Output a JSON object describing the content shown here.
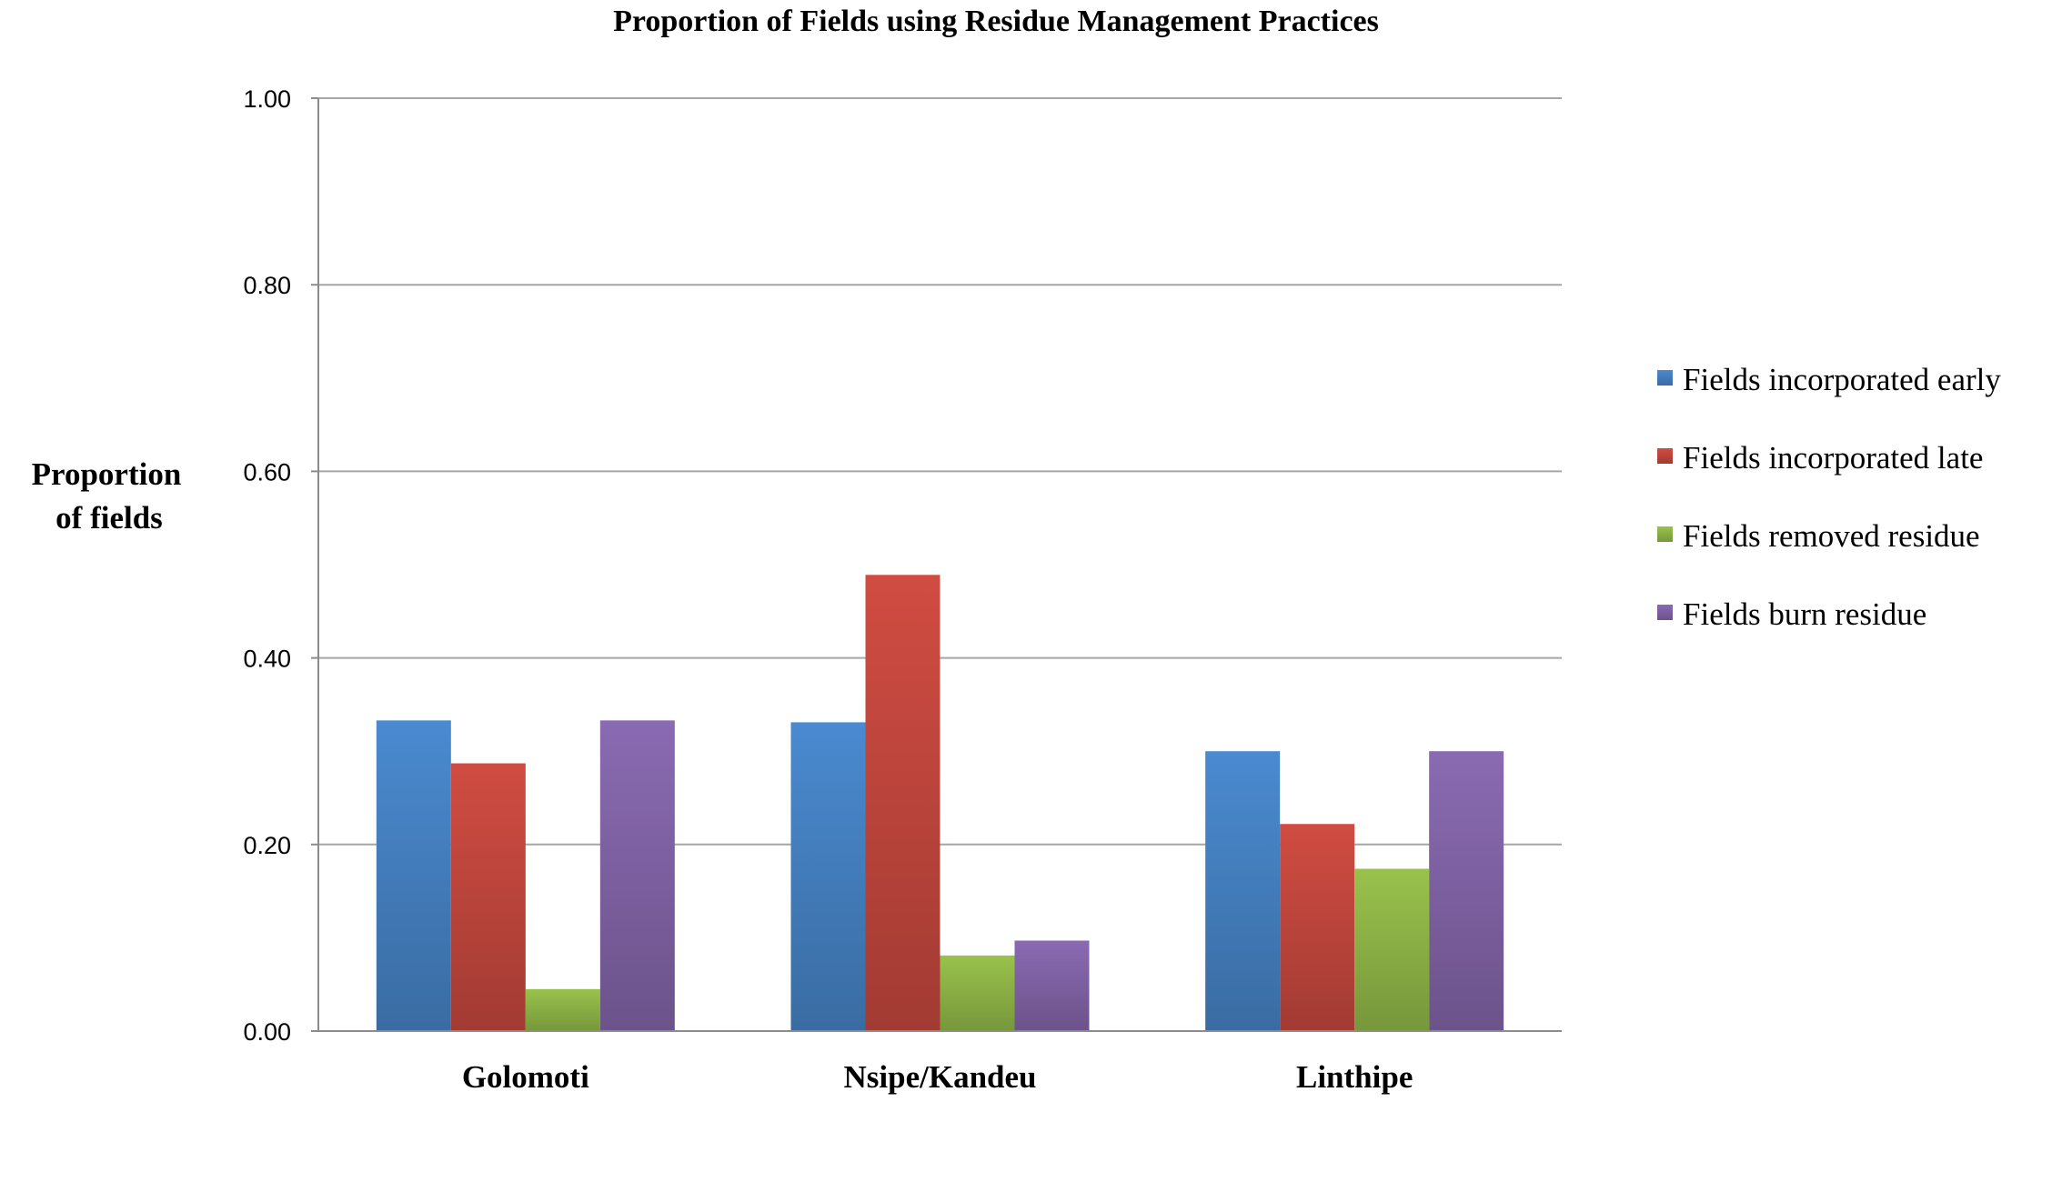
{
  "chart_data": {
    "type": "bar",
    "title": "Proportion of Fields using Residue Management  Practices",
    "ylabel": [
      "Proportion",
      "of fields"
    ],
    "xlabel": "",
    "categories": [
      "Golomoti",
      "Nsipe/Kandeu",
      "Linthipe"
    ],
    "ylim": [
      0,
      1
    ],
    "yticks": [
      "0.00",
      "0.20",
      "0.40",
      "0.60",
      "0.80",
      "1.00"
    ],
    "grid": true,
    "legend_position": "right",
    "series": [
      {
        "name": "Fields incorporated early",
        "color": "#4a8ad0",
        "values": [
          0.333,
          0.331,
          0.3
        ]
      },
      {
        "name": "Fields incorporated late",
        "color": "#d04c42",
        "values": [
          0.287,
          0.489,
          0.222
        ]
      },
      {
        "name": "Fields removed residue",
        "color": "#99c24c",
        "values": [
          0.045,
          0.081,
          0.174
        ]
      },
      {
        "name": "Fields burn residue",
        "color": "#8a6ab2",
        "values": [
          0.333,
          0.097,
          0.3
        ]
      }
    ]
  }
}
